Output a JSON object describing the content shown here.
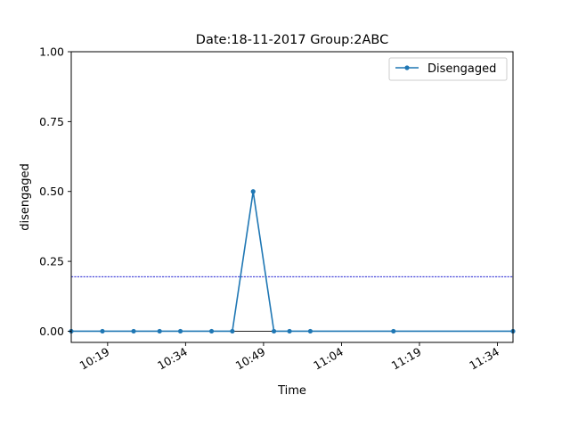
{
  "chart_data": {
    "type": "line",
    "title": "Date:18-11-2017  Group:2ABC",
    "xlabel": "Time",
    "ylabel": "disengaged",
    "x_unit": "time of day (HH:MM)",
    "xlim": [
      "10:12",
      "11:37"
    ],
    "ylim": [
      -0.04,
      1.0
    ],
    "x_ticks": [
      "10:19",
      "10:34",
      "10:49",
      "11:04",
      "11:19",
      "11:34"
    ],
    "y_ticks": [
      0.0,
      0.25,
      0.5,
      0.75,
      1.0
    ],
    "y_tick_labels": [
      "0.00",
      "0.25",
      "0.50",
      "0.75",
      "1.00"
    ],
    "series": [
      {
        "name": "Disengaged",
        "color": "#1f77b4",
        "marker": "circle",
        "x": [
          "10:12",
          "10:18",
          "10:24",
          "10:29",
          "10:33",
          "10:39",
          "10:43",
          "10:47",
          "10:51",
          "10:54",
          "10:58",
          "11:14",
          "11:37"
        ],
        "values": [
          0,
          0,
          0,
          0,
          0,
          0,
          0,
          0.5,
          0,
          0,
          0,
          0,
          0
        ]
      }
    ],
    "reference_lines": [
      {
        "axis": "y",
        "value": 0.195,
        "color": "#0000cc",
        "style": "dashed"
      },
      {
        "axis": "y",
        "value": 0.0,
        "color": "#000000",
        "style": "solid"
      }
    ],
    "grid": false,
    "legend_position": "top-right"
  }
}
